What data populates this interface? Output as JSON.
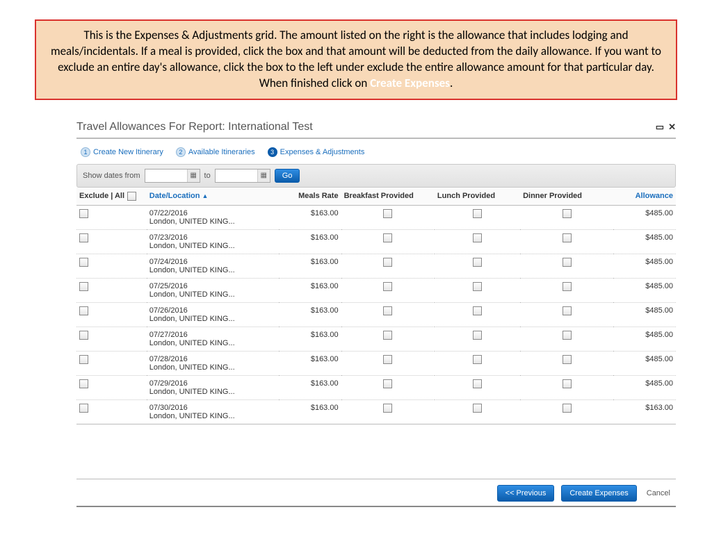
{
  "callout": {
    "text_a": "This is the Expenses & Adjustments grid.  The amount listed on the right is the allowance that includes lodging and meals/incidentals.  If a meal is provided, click the box and that amount will be deducted from the daily allowance.  If you want to exclude an entire day's allowance, click the box to the left under exclude the entire allowance amount for that particular day.  When finished click on  ",
    "highlight": "Create Expenses",
    "text_b": "."
  },
  "window": {
    "title": "Travel Allowances For Report: International Test"
  },
  "steps": {
    "s1_num": "1",
    "s1_label": "Create New Itinerary",
    "s2_num": "2",
    "s2_label": "Available Itineraries",
    "s3_num": "3",
    "s3_label": "Expenses & Adjustments"
  },
  "filter": {
    "label": "Show dates from",
    "to": "to",
    "go": "Go"
  },
  "columns": {
    "exclude": "Exclude | All",
    "dateloc": "Date/Location",
    "arrow": "▲",
    "meals": "Meals Rate",
    "breakfast": "Breakfast Provided",
    "lunch": "Lunch Provided",
    "dinner": "Dinner Provided",
    "allowance": "Allowance"
  },
  "rows": [
    {
      "date": "07/22/2016",
      "loc": "London, UNITED KING...",
      "meals": "$163.00",
      "allow": "$485.00"
    },
    {
      "date": "07/23/2016",
      "loc": "London, UNITED KING...",
      "meals": "$163.00",
      "allow": "$485.00"
    },
    {
      "date": "07/24/2016",
      "loc": "London, UNITED KING...",
      "meals": "$163.00",
      "allow": "$485.00"
    },
    {
      "date": "07/25/2016",
      "loc": "London, UNITED KING...",
      "meals": "$163.00",
      "allow": "$485.00"
    },
    {
      "date": "07/26/2016",
      "loc": "London, UNITED KING...",
      "meals": "$163.00",
      "allow": "$485.00"
    },
    {
      "date": "07/27/2016",
      "loc": "London, UNITED KING...",
      "meals": "$163.00",
      "allow": "$485.00"
    },
    {
      "date": "07/28/2016",
      "loc": "London, UNITED KING...",
      "meals": "$163.00",
      "allow": "$485.00"
    },
    {
      "date": "07/29/2016",
      "loc": "London, UNITED KING...",
      "meals": "$163.00",
      "allow": "$485.00"
    },
    {
      "date": "07/30/2016",
      "loc": "London, UNITED KING...",
      "meals": "$163.00",
      "allow": "$163.00"
    }
  ],
  "footer": {
    "prev": "<< Previous",
    "create": "Create Expenses",
    "cancel": "Cancel"
  },
  "colors": {
    "callout_bg": "#f8d9b8",
    "callout_border": "#d9322d",
    "link": "#1a6ebd",
    "btn_top": "#2f8de3",
    "btn_bot": "#0b5cab"
  }
}
